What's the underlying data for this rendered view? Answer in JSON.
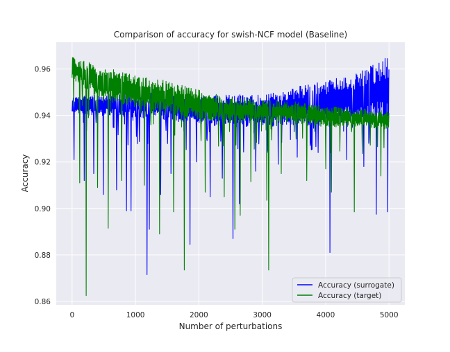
{
  "chart_data": {
    "type": "line",
    "title": "Comparison of accuracy for swish-NCF model (Baseline)",
    "xlabel": "Number of perturbations",
    "ylabel": "Accuracy",
    "xlim": [
      -250,
      5250
    ],
    "ylim": [
      0.8585,
      0.9715
    ],
    "xticks": [
      0,
      1000,
      2000,
      3000,
      4000,
      5000
    ],
    "xtick_labels": [
      "0",
      "1000",
      "2000",
      "3000",
      "4000",
      "5000"
    ],
    "yticks": [
      0.86,
      0.88,
      0.9,
      0.92,
      0.94,
      0.96
    ],
    "ytick_labels": [
      "0.86",
      "0.88",
      "0.90",
      "0.92",
      "0.94",
      "0.96"
    ],
    "grid": true,
    "legend_position": "lower-right",
    "background_color": "#eaeaf2",
    "grid_color": "#ffffff",
    "series": [
      {
        "name": "Accuracy (surrogate)",
        "color": "#0000ff",
        "x": [
          0,
          500,
          1000,
          1500,
          2000,
          2500,
          3000,
          3500,
          4000,
          4500,
          5000
        ],
        "upper": [
          0.948,
          0.949,
          0.95,
          0.95,
          0.948,
          0.949,
          0.949,
          0.952,
          0.955,
          0.958,
          0.966
        ],
        "lower": [
          0.94,
          0.94,
          0.939,
          0.938,
          0.936,
          0.935,
          0.935,
          0.936,
          0.937,
          0.937,
          0.937
        ],
        "dips": [
          {
            "x": 30,
            "y": 0.921
          },
          {
            "x": 190,
            "y": 0.912
          },
          {
            "x": 340,
            "y": 0.915
          },
          {
            "x": 490,
            "y": 0.906
          },
          {
            "x": 700,
            "y": 0.908
          },
          {
            "x": 860,
            "y": 0.899
          },
          {
            "x": 930,
            "y": 0.899
          },
          {
            "x": 1180,
            "y": 0.8715
          },
          {
            "x": 1220,
            "y": 0.891
          },
          {
            "x": 1400,
            "y": 0.906
          },
          {
            "x": 1560,
            "y": 0.915
          },
          {
            "x": 1860,
            "y": 0.8845
          },
          {
            "x": 1960,
            "y": 0.92
          },
          {
            "x": 2180,
            "y": 0.905
          },
          {
            "x": 2370,
            "y": 0.913
          },
          {
            "x": 2540,
            "y": 0.887
          },
          {
            "x": 2640,
            "y": 0.902
          },
          {
            "x": 2900,
            "y": 0.916
          },
          {
            "x": 3250,
            "y": 0.919
          },
          {
            "x": 3550,
            "y": 0.922
          },
          {
            "x": 3880,
            "y": 0.924
          },
          {
            "x": 4070,
            "y": 0.881
          },
          {
            "x": 4330,
            "y": 0.921
          },
          {
            "x": 4600,
            "y": 0.918
          },
          {
            "x": 4800,
            "y": 0.8975
          },
          {
            "x": 4980,
            "y": 0.8985
          }
        ]
      },
      {
        "name": "Accuracy (target)",
        "color": "#008000",
        "x": [
          0,
          500,
          1000,
          1500,
          2000,
          2500,
          3000,
          3500,
          4000,
          4500,
          5000
        ],
        "upper": [
          0.965,
          0.961,
          0.957,
          0.955,
          0.951,
          0.948,
          0.947,
          0.946,
          0.944,
          0.943,
          0.942
        ],
        "lower": [
          0.955,
          0.947,
          0.943,
          0.941,
          0.938,
          0.937,
          0.937,
          0.937,
          0.935,
          0.935,
          0.934
        ],
        "dips": [
          {
            "x": 120,
            "y": 0.911
          },
          {
            "x": 220,
            "y": 0.8625
          },
          {
            "x": 400,
            "y": 0.909
          },
          {
            "x": 570,
            "y": 0.8915
          },
          {
            "x": 780,
            "y": 0.912
          },
          {
            "x": 1140,
            "y": 0.91
          },
          {
            "x": 1380,
            "y": 0.889
          },
          {
            "x": 1600,
            "y": 0.8985
          },
          {
            "x": 1770,
            "y": 0.8735
          },
          {
            "x": 2100,
            "y": 0.907
          },
          {
            "x": 2400,
            "y": 0.905
          },
          {
            "x": 2570,
            "y": 0.891
          },
          {
            "x": 2650,
            "y": 0.897
          },
          {
            "x": 2820,
            "y": 0.9115
          },
          {
            "x": 3070,
            "y": 0.9035
          },
          {
            "x": 3100,
            "y": 0.8735
          },
          {
            "x": 3300,
            "y": 0.915
          },
          {
            "x": 3700,
            "y": 0.912
          },
          {
            "x": 4000,
            "y": 0.917
          },
          {
            "x": 4090,
            "y": 0.907
          },
          {
            "x": 4450,
            "y": 0.8985
          },
          {
            "x": 4870,
            "y": 0.914
          }
        ]
      }
    ]
  }
}
